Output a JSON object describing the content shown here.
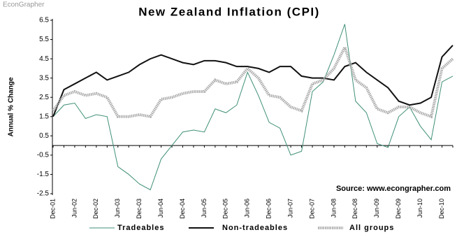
{
  "watermark": "EconGrapher",
  "chart_data": {
    "type": "line",
    "title": "New Zealand Inflation (CPI)",
    "y_label": "Annual % Change",
    "source": "Source: www.econgrapher.com",
    "categories": [
      "Dec-01",
      null,
      "Jun-02",
      null,
      "Dec-02",
      null,
      "Jun-03",
      null,
      "Dec-03",
      null,
      "Jun-04",
      null,
      "Dec-04",
      null,
      "Jun-05",
      null,
      "Dec-05",
      null,
      "Jun-06",
      null,
      "Dec-06",
      null,
      "Jun-07",
      null,
      "Dec-07",
      null,
      "Jun-08",
      null,
      "Dec-08",
      null,
      "Jun-09",
      null,
      "Dec-09",
      null,
      "Jun-10",
      null,
      "Dec-10",
      null
    ],
    "ylim": [
      -2.5,
      6.5
    ],
    "yticks": [
      6.5,
      5.5,
      4.5,
      3.5,
      2.5,
      1.5,
      0.5,
      -0.5,
      -1.5,
      -2.5
    ],
    "series": [
      {
        "name": "Tradeables",
        "color": "#3f8f78",
        "style": "solid",
        "values": [
          1.5,
          2.1,
          2.2,
          1.4,
          1.6,
          1.5,
          -1.1,
          -1.5,
          -2.0,
          -2.3,
          -0.7,
          0.0,
          0.7,
          0.8,
          0.7,
          1.9,
          1.7,
          2.1,
          3.8,
          2.6,
          1.2,
          0.9,
          -0.5,
          -0.3,
          2.8,
          3.3,
          4.7,
          6.3,
          2.3,
          1.7,
          0.1,
          -0.1,
          1.5,
          2.0,
          1.0,
          0.3,
          3.3,
          3.6
        ]
      },
      {
        "name": "Non-tradeables",
        "color": "#111111",
        "style": "solid",
        "values": [
          1.5,
          2.9,
          3.2,
          3.5,
          3.8,
          3.4,
          3.6,
          3.8,
          4.2,
          4.5,
          4.7,
          4.5,
          4.3,
          4.2,
          4.4,
          4.4,
          4.3,
          4.1,
          4.1,
          4.0,
          3.8,
          4.1,
          4.1,
          3.6,
          3.5,
          3.5,
          3.4,
          4.1,
          4.3,
          3.8,
          3.4,
          3.0,
          2.3,
          2.1,
          2.2,
          2.5,
          4.6,
          5.2
        ]
      },
      {
        "name": "All groups",
        "color": "#aaaaaa",
        "style": "dotted",
        "values": [
          1.8,
          2.6,
          2.8,
          2.6,
          2.7,
          2.5,
          1.5,
          1.5,
          1.6,
          1.5,
          2.4,
          2.5,
          2.7,
          2.8,
          2.8,
          3.4,
          3.2,
          3.3,
          4.0,
          3.5,
          2.6,
          2.5,
          2.0,
          1.8,
          3.2,
          3.4,
          4.0,
          5.1,
          3.4,
          3.0,
          1.9,
          1.7,
          2.0,
          2.0,
          1.7,
          1.5,
          4.0,
          4.5
        ]
      }
    ]
  }
}
